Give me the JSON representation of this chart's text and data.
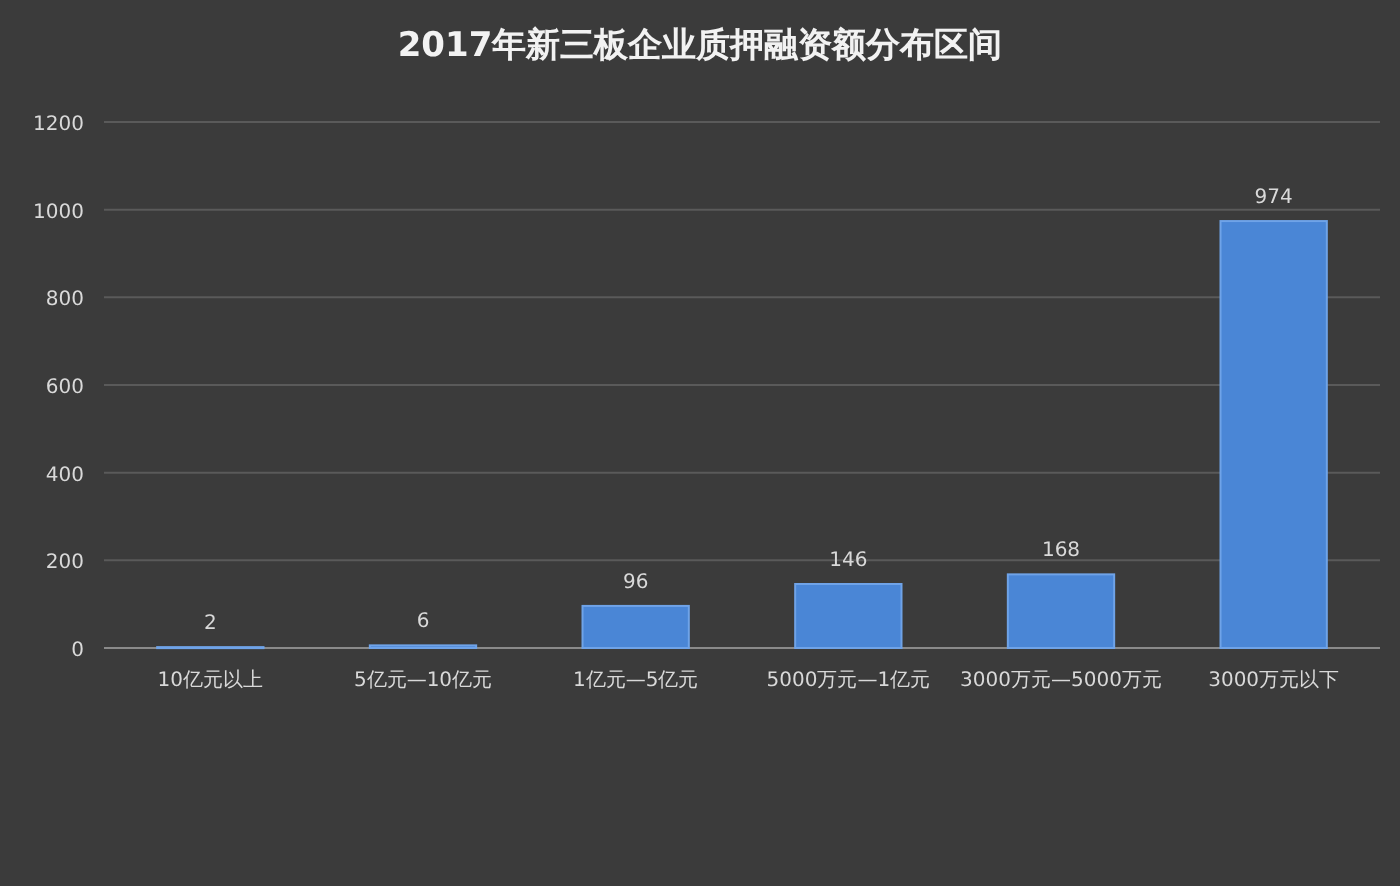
{
  "chart_data": {
    "type": "bar",
    "title": "2017年新三板企业质押融资额分布区间",
    "categories": [
      "10亿元以上",
      "5亿元—10亿元",
      "1亿元—5亿元",
      "5000万元—1亿元",
      "3000万元—5000万元",
      "3000万元以下"
    ],
    "values": [
      2,
      6,
      96,
      146,
      168,
      974
    ],
    "color": "#4a86d6",
    "ylim": [
      0,
      1200
    ],
    "yticks": [
      0,
      200,
      400,
      600,
      800,
      1000,
      1200
    ],
    "grid": "y",
    "data_labels": true
  }
}
